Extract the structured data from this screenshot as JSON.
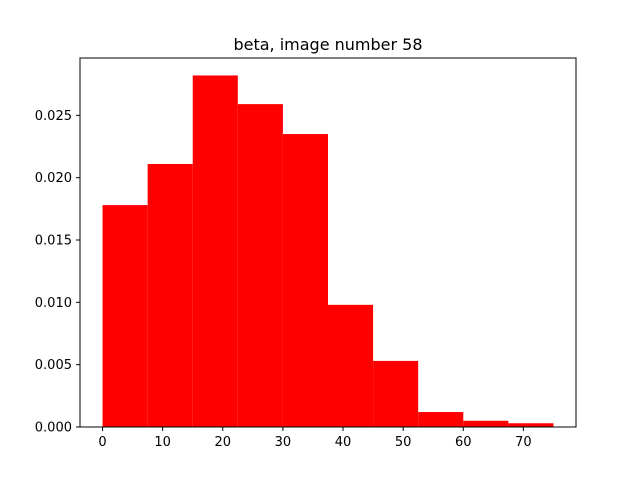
{
  "chart_data": {
    "type": "bar",
    "title": "beta, image number 58",
    "xlabel": "",
    "ylabel": "",
    "bar_color": "#ff0000",
    "bins": [
      {
        "x0": 0.0,
        "x1": 7.5,
        "value": 0.0178
      },
      {
        "x0": 7.5,
        "x1": 15.0,
        "value": 0.0211
      },
      {
        "x0": 15.0,
        "x1": 22.5,
        "value": 0.0282
      },
      {
        "x0": 22.5,
        "x1": 30.0,
        "value": 0.0259
      },
      {
        "x0": 30.0,
        "x1": 37.5,
        "value": 0.0235
      },
      {
        "x0": 37.5,
        "x1": 45.0,
        "value": 0.0098
      },
      {
        "x0": 45.0,
        "x1": 52.5,
        "value": 0.0053
      },
      {
        "x0": 52.5,
        "x1": 60.0,
        "value": 0.0012
      },
      {
        "x0": 60.0,
        "x1": 67.5,
        "value": 0.0005
      },
      {
        "x0": 67.5,
        "x1": 75.0,
        "value": 0.0003
      }
    ],
    "xlim": [
      -3.75,
      78.75
    ],
    "ylim": [
      0,
      0.0296
    ],
    "xticks": [
      0,
      10,
      20,
      30,
      40,
      50,
      60,
      70
    ],
    "xtick_labels": [
      "0",
      "10",
      "20",
      "30",
      "40",
      "50",
      "60",
      "70"
    ],
    "yticks": [
      0.0,
      0.005,
      0.01,
      0.015,
      0.02,
      0.025
    ],
    "ytick_labels": [
      "0.000",
      "0.005",
      "0.010",
      "0.015",
      "0.020",
      "0.025"
    ],
    "grid": false,
    "legend": "none"
  }
}
